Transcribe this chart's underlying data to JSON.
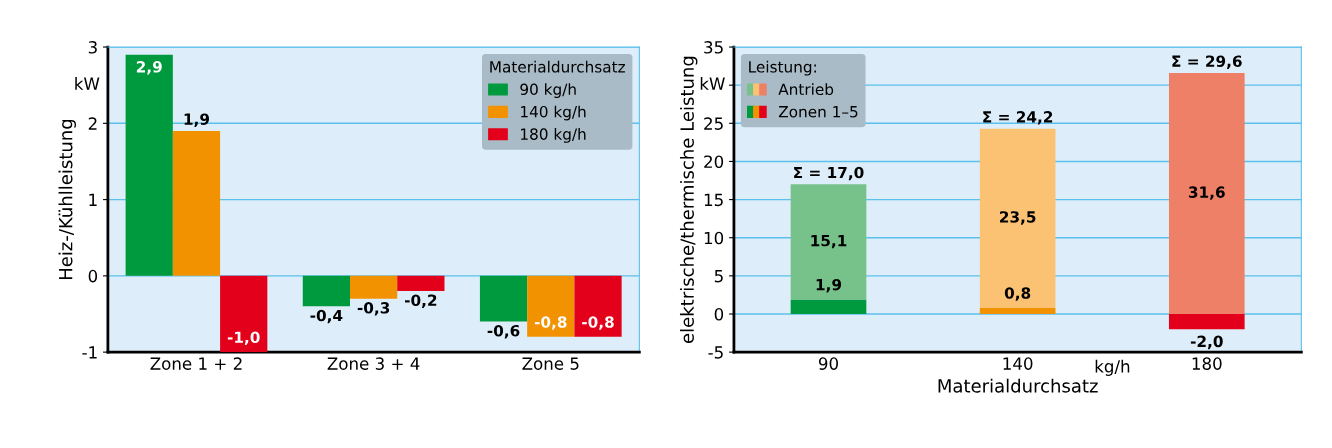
{
  "chart_data": [
    {
      "type": "bar",
      "ylabel": "Heiz-/Kühlleistung",
      "categories": [
        "Zone 1 + 2",
        "Zone 3 + 4",
        "Zone 5"
      ],
      "series": [
        {
          "name": "90 kg/h",
          "color": "#009a3e",
          "values": [
            2.9,
            -0.4,
            -0.6
          ],
          "value_labels": [
            "2,9",
            "-0,4",
            "-0,6"
          ]
        },
        {
          "name": "140 kg/h",
          "color": "#f39200",
          "values": [
            1.9,
            -0.3,
            -0.8
          ],
          "value_labels": [
            "1,9",
            "-0,3",
            "-0,8"
          ]
        },
        {
          "name": "180 kg/h",
          "color": "#e2001a",
          "values": [
            -1.0,
            -0.2,
            -0.8
          ],
          "value_labels": [
            "-1,0",
            "-0,2",
            "-0,8"
          ]
        }
      ],
      "ylim": [
        -1,
        3
      ],
      "yticks": [
        {
          "value": -1,
          "label": "-1"
        },
        0,
        1,
        2,
        3
      ],
      "grid": "y",
      "legend": "top right",
      "legend_title": "Materialdurchsatz",
      "annotations": [
        "kW"
      ]
    },
    {
      "type": "bar",
      "stacked": true,
      "xlabel": "Materialdurchsatz",
      "ylabel": "elektrische/thermische Leistung",
      "categories": [
        "90",
        "140",
        "180"
      ],
      "series": [
        {
          "name": "Zonen 1–5",
          "colors": [
            "#009a3e",
            "#f39200",
            "#e2001a"
          ],
          "values": [
            1.9,
            0.8,
            -2.0
          ],
          "value_labels": [
            "1,9",
            "0,8",
            "-2,0"
          ]
        },
        {
          "name": "Antrieb",
          "colors": [
            "#77c28a",
            "#fbc274",
            "#ee8067"
          ],
          "values": [
            15.1,
            23.5,
            31.6
          ],
          "value_labels": [
            "15,1",
            "23,5",
            "31,6"
          ]
        }
      ],
      "totals": [
        "Σ = 17,0",
        "Σ = 24,2",
        "Σ = 29,6"
      ],
      "ylim": [
        -5,
        35
      ],
      "yticks": [
        {
          "value": -5,
          "label": "-5"
        },
        0,
        5,
        10,
        15,
        20,
        25,
        {
          "value": 30,
          "label": null
        },
        35
      ],
      "grid": "y",
      "legend": "top left",
      "legend_title": "Leistung:",
      "annotations": [
        "kW",
        "kg/h"
      ]
    }
  ]
}
